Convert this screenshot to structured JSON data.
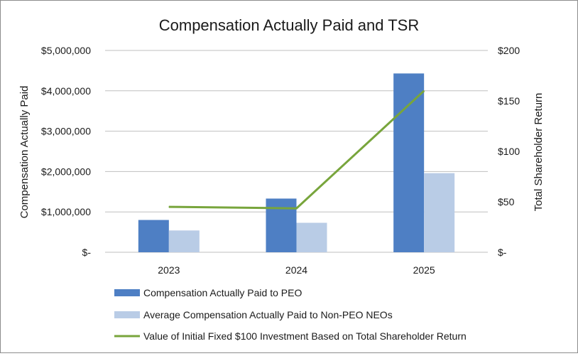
{
  "chart_data": {
    "type": "bar",
    "title": "Compensation Actually Paid and TSR",
    "categories": [
      "2023",
      "2024",
      "2025"
    ],
    "ylabel": "Compensation Actually Paid",
    "y2label": "Total Shareholder Return",
    "ylim": [
      0,
      5000000
    ],
    "y2lim": [
      0,
      200
    ],
    "yticks": [
      "$-",
      "$1,000,000",
      "$2,000,000",
      "$3,000,000",
      "$4,000,000",
      "$5,000,000"
    ],
    "y2ticks": [
      "$-",
      "$50",
      "$100",
      "$150",
      "$200"
    ],
    "grid": true,
    "legend_position": "bottom",
    "series": [
      {
        "name": "Compensation Actually Paid to PEO",
        "type": "bar",
        "axis": "left",
        "color": "#4e7fc4",
        "values": [
          800000,
          1330000,
          4430000
        ]
      },
      {
        "name": "Average Compensation Actually Paid to Non-PEO NEOs",
        "type": "bar",
        "axis": "left",
        "color": "#b9cce6",
        "values": [
          540000,
          730000,
          1960000
        ]
      },
      {
        "name": "Value of Initial Fixed $100 Investment Based on Total Shareholder Return",
        "type": "line",
        "axis": "right",
        "color": "#78a53c",
        "values": [
          45,
          43.5,
          160
        ]
      }
    ]
  }
}
